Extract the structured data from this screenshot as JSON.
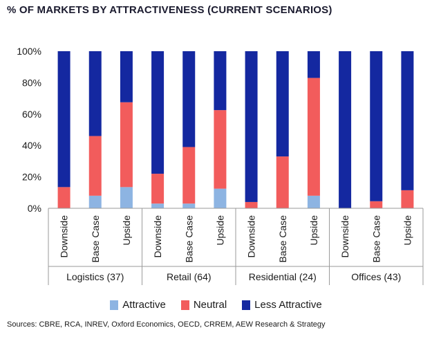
{
  "title": "% OF MARKETS BY ATTRACTIVENESS (CURRENT SCENARIOS)",
  "source": "Sources: CBRE, RCA, INREV, Oxford Economics, OECD, CRREM, AEW Research & Strategy",
  "colors": {
    "attractive": "#8db4e2",
    "neutral": "#f25c5c",
    "less_attractive": "#1428a0"
  },
  "legend": [
    {
      "key": "attractive",
      "label": "Attractive"
    },
    {
      "key": "neutral",
      "label": "Neutral"
    },
    {
      "key": "less_attractive",
      "label": "Less Attractive"
    }
  ],
  "chart_data": {
    "type": "bar",
    "stacked": true,
    "ylim": [
      0,
      100
    ],
    "yticks": [
      "0%",
      "20%",
      "40%",
      "60%",
      "80%",
      "100%"
    ],
    "groups": [
      {
        "label": "Logistics (37)",
        "categories": [
          "Downside",
          "Base Case",
          "Upside"
        ]
      },
      {
        "label": "Retail (64)",
        "categories": [
          "Downside",
          "Base Case",
          "Upside"
        ]
      },
      {
        "label": "Residential (24)",
        "categories": [
          "Downside",
          "Base Case",
          "Upside"
        ]
      },
      {
        "label": "Offices (43)",
        "categories": [
          "Downside",
          "Base Case",
          "Upside"
        ]
      }
    ],
    "series": [
      {
        "name": "Attractive",
        "key": "attractive",
        "values": [
          0,
          8,
          13.5,
          3,
          3,
          12.5,
          0,
          0,
          8,
          0,
          0,
          0
        ]
      },
      {
        "name": "Neutral",
        "key": "neutral",
        "values": [
          13.5,
          38,
          54,
          19,
          36,
          50,
          4,
          33,
          75,
          0,
          4.5,
          11.5
        ]
      },
      {
        "name": "Less Attractive",
        "key": "less_attractive",
        "values": [
          86.5,
          54,
          32.5,
          78,
          61,
          37.5,
          96,
          67,
          17,
          100,
          95.5,
          88.5
        ]
      }
    ],
    "grid": false,
    "legend_position": "bottom"
  }
}
